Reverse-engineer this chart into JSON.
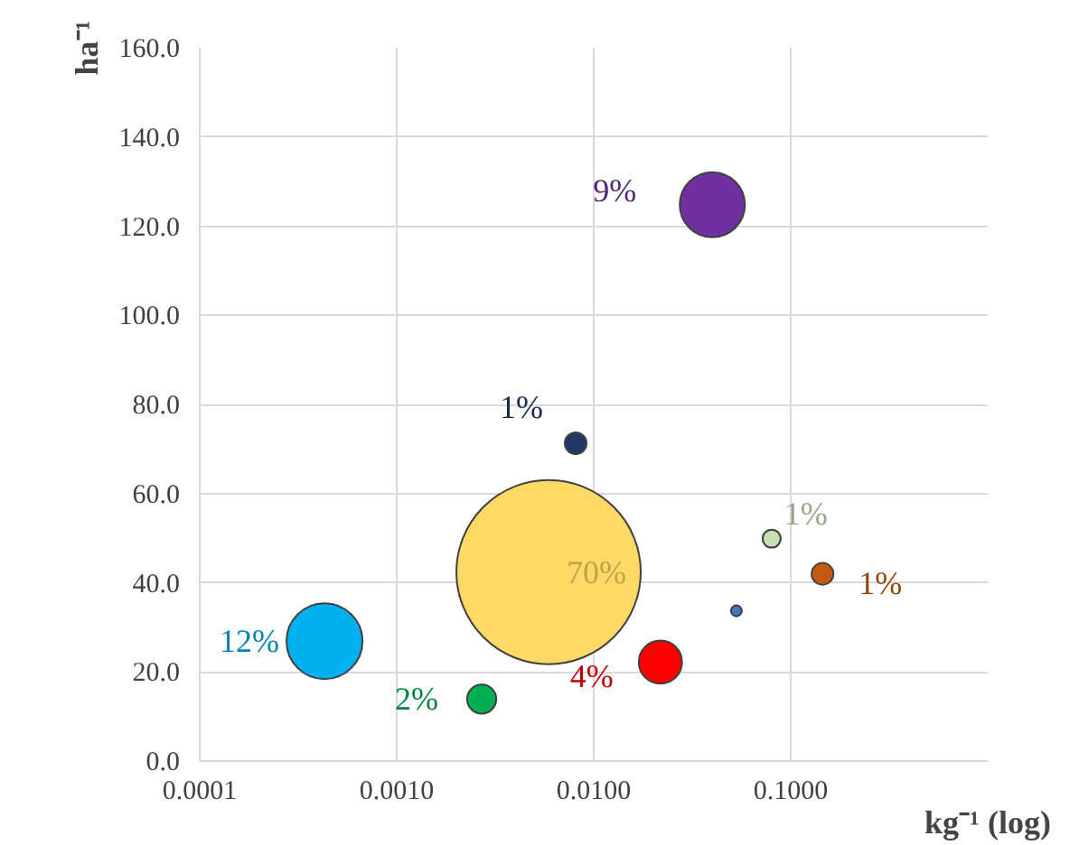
{
  "chart_data": {
    "type": "bubble",
    "xlabel": "kg⁻¹ (log)",
    "ylabel": "ha⁻¹",
    "x": [
      0.00043,
      0.0027,
      0.0059,
      0.0218,
      0.04,
      0.0081,
      0.053,
      0.08,
      0.145
    ],
    "values": [
      26.9,
      13.9,
      42.4,
      22.2,
      124.8,
      71.3,
      33.7,
      49.9,
      42.0
    ],
    "sizes": [
      0.17,
      0.025,
      1,
      0.055,
      0.125,
      0.014,
      0.0035,
      0.0096,
      0.014
    ],
    "colors": [
      "#00b0f0",
      "#00b050",
      "#ffd966",
      "#ff0000",
      "#7030a0",
      "#1f3864",
      "#4472c4",
      "#c5e0b4",
      "#c55a11"
    ],
    "annotations": [
      {
        "text": "12%",
        "x": 0.00043,
        "y": 26.9
      },
      {
        "text": "2%",
        "x": 0.0027,
        "y": 13.9
      },
      {
        "text": "70%",
        "x": 0.0059,
        "y": 42.4
      },
      {
        "text": "4%",
        "x": 0.0218,
        "y": 22.2
      },
      {
        "text": "9%",
        "x": 0.04,
        "y": 124.8
      },
      {
        "text": "1%",
        "x": 0.0081,
        "y": 71.3
      },
      {
        "text": "1%",
        "x": 0.08,
        "y": 49.9
      },
      {
        "text": "1%",
        "x": 0.145,
        "y": 42.0
      }
    ],
    "xlim": [
      0.0001,
      1
    ],
    "ylim": [
      0,
      160
    ],
    "log": "x",
    "grid": true,
    "xticks": [
      {
        "value": 0.0001,
        "label": "0.0001"
      },
      {
        "value": 0.001,
        "label": "0.0010"
      },
      {
        "value": 0.01,
        "label": "0.0100"
      },
      {
        "value": 0.1,
        "label": "0.1000"
      }
    ],
    "yticks": [
      {
        "value": 0,
        "label": "0.0"
      },
      {
        "value": 20,
        "label": "20.0"
      },
      {
        "value": 40,
        "label": "40.0"
      },
      {
        "value": 60,
        "label": "60.0"
      },
      {
        "value": 80,
        "label": "80.0"
      },
      {
        "value": 100,
        "label": "100.0"
      },
      {
        "value": 120,
        "label": "120.0"
      },
      {
        "value": 140,
        "label": "140.0"
      },
      {
        "value": 160,
        "label": "160.0"
      }
    ]
  }
}
